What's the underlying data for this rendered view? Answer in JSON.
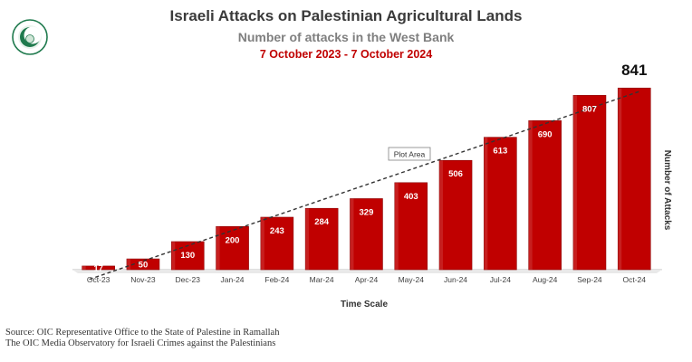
{
  "header": {
    "title": "Israeli Attacks on Palestinian Agricultural Lands",
    "subtitle": "Number of attacks in the West Bank",
    "period": "7 October 2023 - 7 October 2024"
  },
  "source": {
    "line1": "Source: OIC Representative Office to the State of Palestine in Ramallah",
    "line2": "The OIC Media Observatory for Israeli Crimes against the Palestinians"
  },
  "colors": {
    "bar": "#c00000",
    "bar_edge": "#8b0000",
    "trend": "#333333",
    "period": "#c00000"
  },
  "chart_data": {
    "type": "bar",
    "title": "Israeli Attacks on Palestinian Agricultural Lands",
    "categories": [
      "Oct-23",
      "Nov-23",
      "Dec-23",
      "Jan-24",
      "Feb-24",
      "Mar-24",
      "Apr-24",
      "May-24",
      "Jun-24",
      "Jul-24",
      "Aug-24",
      "Sep-24",
      "Oct-24"
    ],
    "values": [
      17,
      50,
      130,
      200,
      243,
      284,
      329,
      403,
      506,
      613,
      690,
      807,
      841
    ],
    "xlabel": "Time Scale",
    "ylabel": "Number of Attacks",
    "ylim": [
      0,
      930
    ],
    "highlight": {
      "category": "Oct-24",
      "label": "841"
    },
    "trendline": {
      "type": "linear",
      "style": "dashed"
    },
    "annotation": "Plot Area"
  }
}
